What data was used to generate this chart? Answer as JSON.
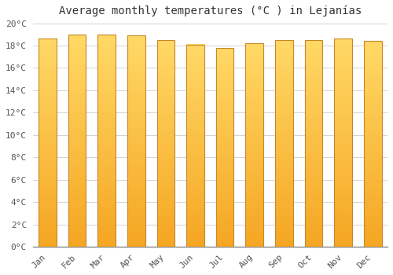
{
  "title": "Average monthly temperatures (°C ) in Lejanías",
  "months": [
    "Jan",
    "Feb",
    "Mar",
    "Apr",
    "May",
    "Jun",
    "Jul",
    "Aug",
    "Sep",
    "Oct",
    "Nov",
    "Dec"
  ],
  "values": [
    18.6,
    19.0,
    19.0,
    18.9,
    18.5,
    18.1,
    17.8,
    18.2,
    18.5,
    18.5,
    18.6,
    18.4
  ],
  "bar_color_bottom": "#F5A623",
  "bar_color_top": "#FFD966",
  "bar_edge_color": "#C8862A",
  "ylim": [
    0,
    20
  ],
  "yticks": [
    0,
    2,
    4,
    6,
    8,
    10,
    12,
    14,
    16,
    18,
    20
  ],
  "ytick_labels": [
    "0°C",
    "2°C",
    "4°C",
    "6°C",
    "8°C",
    "10°C",
    "12°C",
    "14°C",
    "16°C",
    "18°C",
    "20°C"
  ],
  "background_color": "#FFFFFF",
  "grid_color": "#CCCCCC",
  "title_fontsize": 10,
  "tick_fontsize": 8,
  "bar_width": 0.6,
  "n_grad": 80
}
